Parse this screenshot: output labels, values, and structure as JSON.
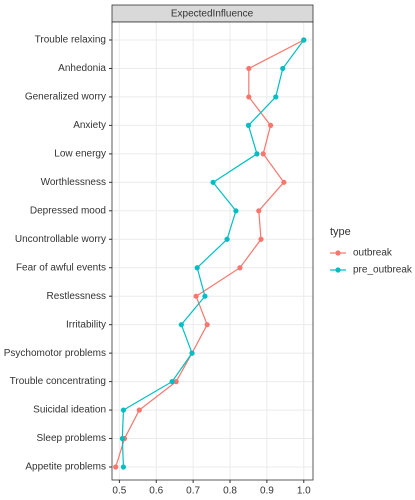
{
  "chart_data": {
    "type": "line",
    "strip_label": "ExpectedInfluence",
    "legend_title": "type",
    "categories": [
      "Trouble relaxing",
      "Anhedonia",
      "Generalized worry",
      "Anxiety",
      "Low energy",
      "Worthlessness",
      "Depressed mood",
      "Uncontrollable worry",
      "Fear of awful events",
      "Restlessness",
      "Irritability",
      "Psychomotor problems",
      "Trouble concentrating",
      "Suicidal ideation",
      "Sleep problems",
      "Appetite problems"
    ],
    "series": [
      {
        "name": "outbreak",
        "color": "#F8766D",
        "values": [
          1.0,
          0.851,
          0.851,
          0.91,
          0.89,
          0.946,
          0.878,
          0.884,
          0.827,
          0.708,
          0.738,
          0.697,
          0.654,
          0.554,
          0.514,
          0.49
        ]
      },
      {
        "name": "pre_outbreak",
        "color": "#00BFC4",
        "values": [
          1.0,
          0.943,
          0.924,
          0.85,
          0.873,
          0.754,
          0.816,
          0.792,
          0.711,
          0.732,
          0.668,
          0.697,
          0.643,
          0.511,
          0.508,
          0.511
        ]
      }
    ],
    "xlim": [
      0.48,
      1.025
    ],
    "xticks": [
      0.5,
      0.6,
      0.7,
      0.8,
      0.9,
      {
        "value": 1.0,
        "label": "1.0"
      }
    ],
    "grid": true
  }
}
